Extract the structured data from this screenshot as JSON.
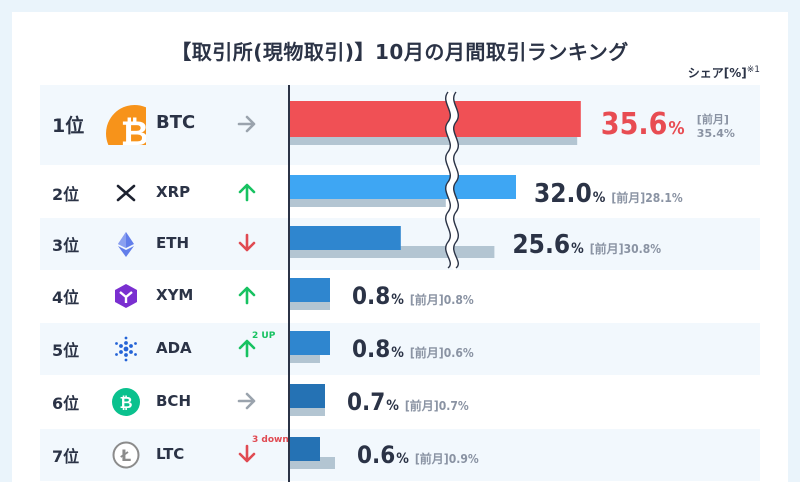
{
  "title": "【取引所(現物取引)】10月の月間取引ランキング",
  "share_label": "シェア[%]",
  "share_note": "※1",
  "prev_label": "[前月]",
  "colors": {
    "current_first": "#f05055",
    "current_top": "#3ea6f3",
    "current_mid": "#2f86cf",
    "current_low": "#2572b4",
    "previous": "#b3c5d2",
    "up": "#17c261",
    "down": "#e04a52",
    "flat": "#9aa3ad"
  },
  "rows": [
    {
      "rank": "1位",
      "symbol": "BTC",
      "icon": "bitcoin-icon",
      "trend": "flat",
      "trend_note": "",
      "current_text": "35.6",
      "pct": "%",
      "prev_text": "35.4%"
    },
    {
      "rank": "2位",
      "symbol": "XRP",
      "icon": "xrp-icon",
      "trend": "up",
      "trend_note": "",
      "current_text": "32.0",
      "pct": "%",
      "prev_text": "28.1%"
    },
    {
      "rank": "3位",
      "symbol": "ETH",
      "icon": "ethereum-icon",
      "trend": "down",
      "trend_note": "",
      "current_text": "25.6",
      "pct": "%",
      "prev_text": "30.8%"
    },
    {
      "rank": "4位",
      "symbol": "XYM",
      "icon": "symbol-icon",
      "trend": "up",
      "trend_note": "",
      "current_text": "0.8",
      "pct": "%",
      "prev_text": "0.8%"
    },
    {
      "rank": "5位",
      "symbol": "ADA",
      "icon": "cardano-icon",
      "trend": "up",
      "trend_note": "2 UP",
      "current_text": "0.8",
      "pct": "%",
      "prev_text": "0.6%"
    },
    {
      "rank": "6位",
      "symbol": "BCH",
      "icon": "bitcoin-cash-icon",
      "trend": "flat",
      "trend_note": "",
      "current_text": "0.7",
      "pct": "%",
      "prev_text": "0.7%"
    },
    {
      "rank": "7位",
      "symbol": "LTC",
      "icon": "litecoin-icon",
      "trend": "down",
      "trend_note": "3 down",
      "current_text": "0.6",
      "pct": "%",
      "prev_text": "0.9%"
    }
  ],
  "chart_data": {
    "type": "bar",
    "orientation": "horizontal",
    "axis_break": true,
    "categories": [
      "BTC",
      "XRP",
      "ETH",
      "XYM",
      "ADA",
      "BCH",
      "LTC"
    ],
    "series": [
      {
        "name": "",
        "values": [
          35.6,
          32.0,
          25.6,
          0.8,
          0.8,
          0.7,
          0.6
        ]
      },
      {
        "name": "[前月]",
        "values": [
          35.4,
          28.1,
          30.8,
          0.8,
          0.6,
          0.7,
          0.9
        ]
      }
    ],
    "title": "【取引所(現物取引)】10月の月間取引ランキング",
    "xlabel": "シェア[%]",
    "ylabel": ""
  }
}
